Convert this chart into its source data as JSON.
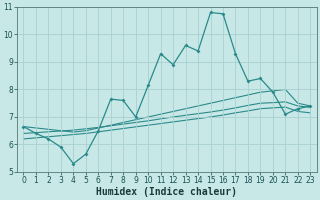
{
  "title": "",
  "xlabel": "Humidex (Indice chaleur)",
  "x_values": [
    0,
    1,
    2,
    3,
    4,
    5,
    6,
    7,
    8,
    9,
    10,
    11,
    12,
    13,
    14,
    15,
    16,
    17,
    18,
    19,
    20,
    21,
    22,
    23
  ],
  "line1_y": [
    6.65,
    6.4,
    6.2,
    5.9,
    5.3,
    5.65,
    6.5,
    7.65,
    7.6,
    7.0,
    8.15,
    9.3,
    8.9,
    9.6,
    9.4,
    10.8,
    10.75,
    9.3,
    8.3,
    8.4,
    7.9,
    7.1,
    7.3,
    7.4
  ],
  "line2_y": [
    6.65,
    6.6,
    6.55,
    6.5,
    6.45,
    6.5,
    6.6,
    6.7,
    6.8,
    6.9,
    7.0,
    7.1,
    7.2,
    7.3,
    7.4,
    7.5,
    7.6,
    7.7,
    7.8,
    7.9,
    7.95,
    8.0,
    7.5,
    7.4
  ],
  "line3_y": [
    6.4,
    6.43,
    6.46,
    6.49,
    6.52,
    6.57,
    6.62,
    6.68,
    6.74,
    6.8,
    6.86,
    6.93,
    7.0,
    7.06,
    7.12,
    7.18,
    7.25,
    7.33,
    7.42,
    7.5,
    7.52,
    7.55,
    7.4,
    7.35
  ],
  "line4_y": [
    6.2,
    6.24,
    6.28,
    6.32,
    6.36,
    6.4,
    6.46,
    6.52,
    6.58,
    6.64,
    6.7,
    6.76,
    6.82,
    6.88,
    6.94,
    7.0,
    7.07,
    7.15,
    7.22,
    7.3,
    7.33,
    7.36,
    7.2,
    7.15
  ],
  "line_color": "#2a8a8a",
  "bg_color": "#c8e8e8",
  "grid_color": "#aad0d0",
  "ylim": [
    5.0,
    11.0
  ],
  "xlim": [
    -0.5,
    23.5
  ],
  "yticks": [
    5,
    6,
    7,
    8,
    9,
    10,
    11
  ],
  "xticks": [
    0,
    1,
    2,
    3,
    4,
    5,
    6,
    7,
    8,
    9,
    10,
    11,
    12,
    13,
    14,
    15,
    16,
    17,
    18,
    19,
    20,
    21,
    22,
    23
  ],
  "xlabel_fontsize": 7.0,
  "xlabel_fontweight": "bold",
  "tick_fontsize": 5.5
}
